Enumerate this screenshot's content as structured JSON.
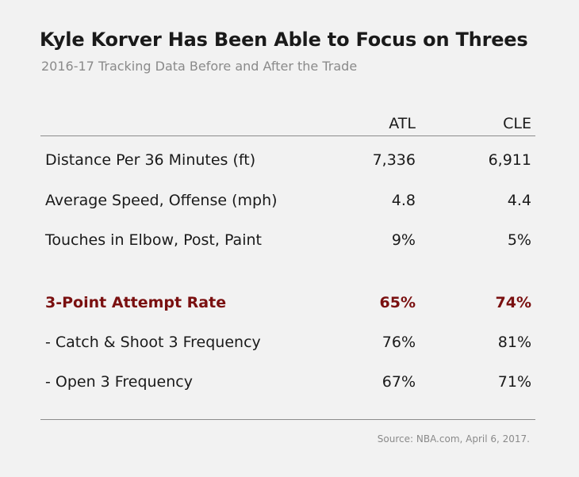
{
  "title": "Kyle Korver Has Been Able to Focus on Threes",
  "subtitle": "2016-17 Tracking Data Before and After the Trade",
  "chart_data": {
    "type": "table",
    "columns": [
      "ATL",
      "CLE"
    ],
    "rows": [
      {
        "label": "Distance Per 36 Minutes (ft)",
        "values": [
          "7,336",
          "6,911"
        ],
        "highlight": false
      },
      {
        "label": "Average Speed, Offense (mph)",
        "values": [
          "4.8",
          "4.4"
        ],
        "highlight": false
      },
      {
        "label": "Touches in Elbow, Post, Paint",
        "values": [
          "9%",
          "5%"
        ],
        "highlight": false
      },
      {
        "label": "3-Point Attempt Rate",
        "values": [
          "65%",
          "74%"
        ],
        "highlight": true
      },
      {
        "label": "- Catch & Shoot 3 Frequency",
        "values": [
          "76%",
          "81%"
        ],
        "highlight": false
      },
      {
        "label": "- Open 3 Frequency",
        "values": [
          "67%",
          "71%"
        ],
        "highlight": false
      }
    ]
  },
  "colors": {
    "highlight": "#7a1010",
    "rule": "#8c8c8c",
    "subtitle": "#8a8a8a",
    "background": "#f2f2f2"
  },
  "source": "Source: NBA.com, April 6, 2017."
}
